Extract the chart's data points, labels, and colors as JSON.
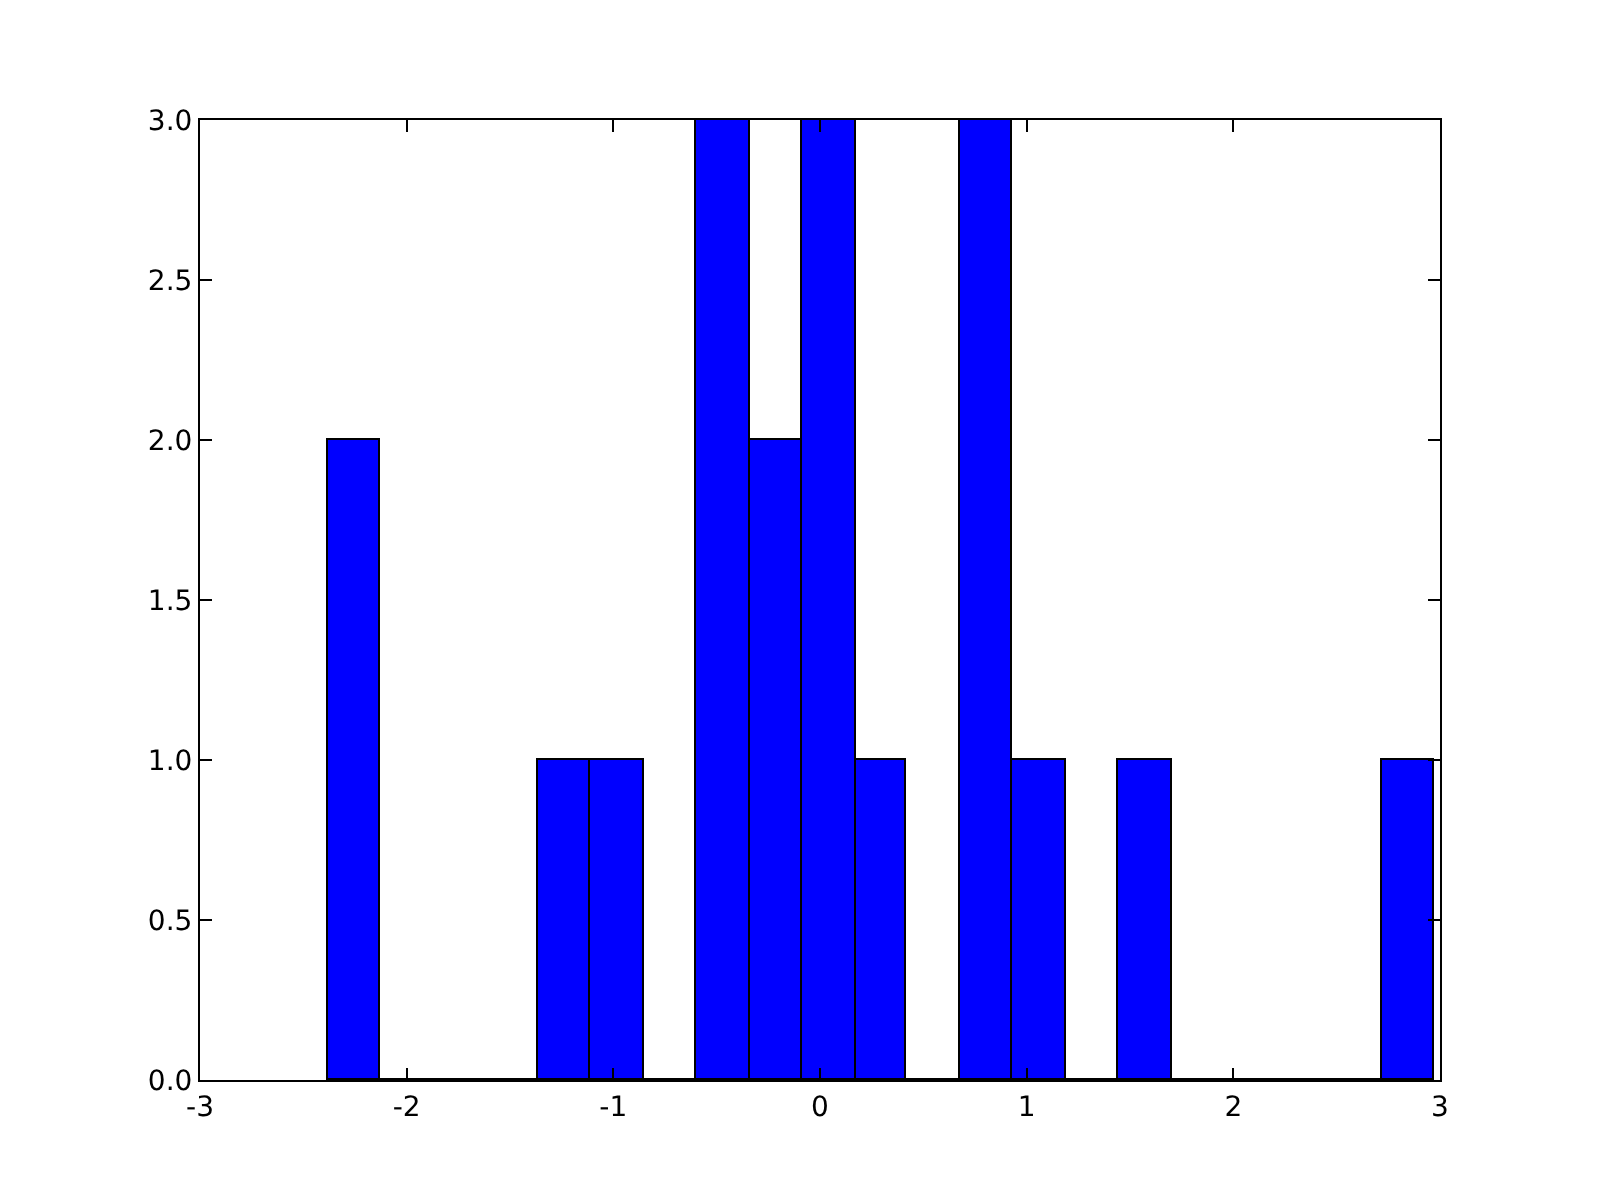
{
  "chart_data": {
    "type": "histogram",
    "bins": [
      -2.38,
      -2.13,
      -1.36,
      -1.11,
      -0.85,
      -0.6,
      -0.34,
      -0.09,
      0.17,
      0.42,
      0.68,
      0.93,
      1.19,
      1.44,
      1.7,
      2.72,
      2.97
    ],
    "values": [
      2,
      0,
      1,
      1,
      0,
      3,
      2,
      3,
      1,
      0,
      3,
      1,
      0,
      1,
      0,
      1
    ],
    "color": "#0000ff",
    "xlim": [
      -3,
      3
    ],
    "xticks": [
      -3,
      -2,
      -1,
      0,
      1,
      2,
      3
    ],
    "ylim": [
      0,
      3
    ],
    "yticks": [
      {
        "value": 0,
        "label": "0.0"
      },
      {
        "value": 0.5,
        "label": "0.5"
      },
      {
        "value": 1,
        "label": "1.0"
      },
      {
        "value": 1.5,
        "label": "1.5"
      },
      {
        "value": 2,
        "label": "2.0"
      },
      {
        "value": 2.5,
        "label": "2.5"
      },
      {
        "value": 3,
        "label": "3.0"
      }
    ]
  }
}
